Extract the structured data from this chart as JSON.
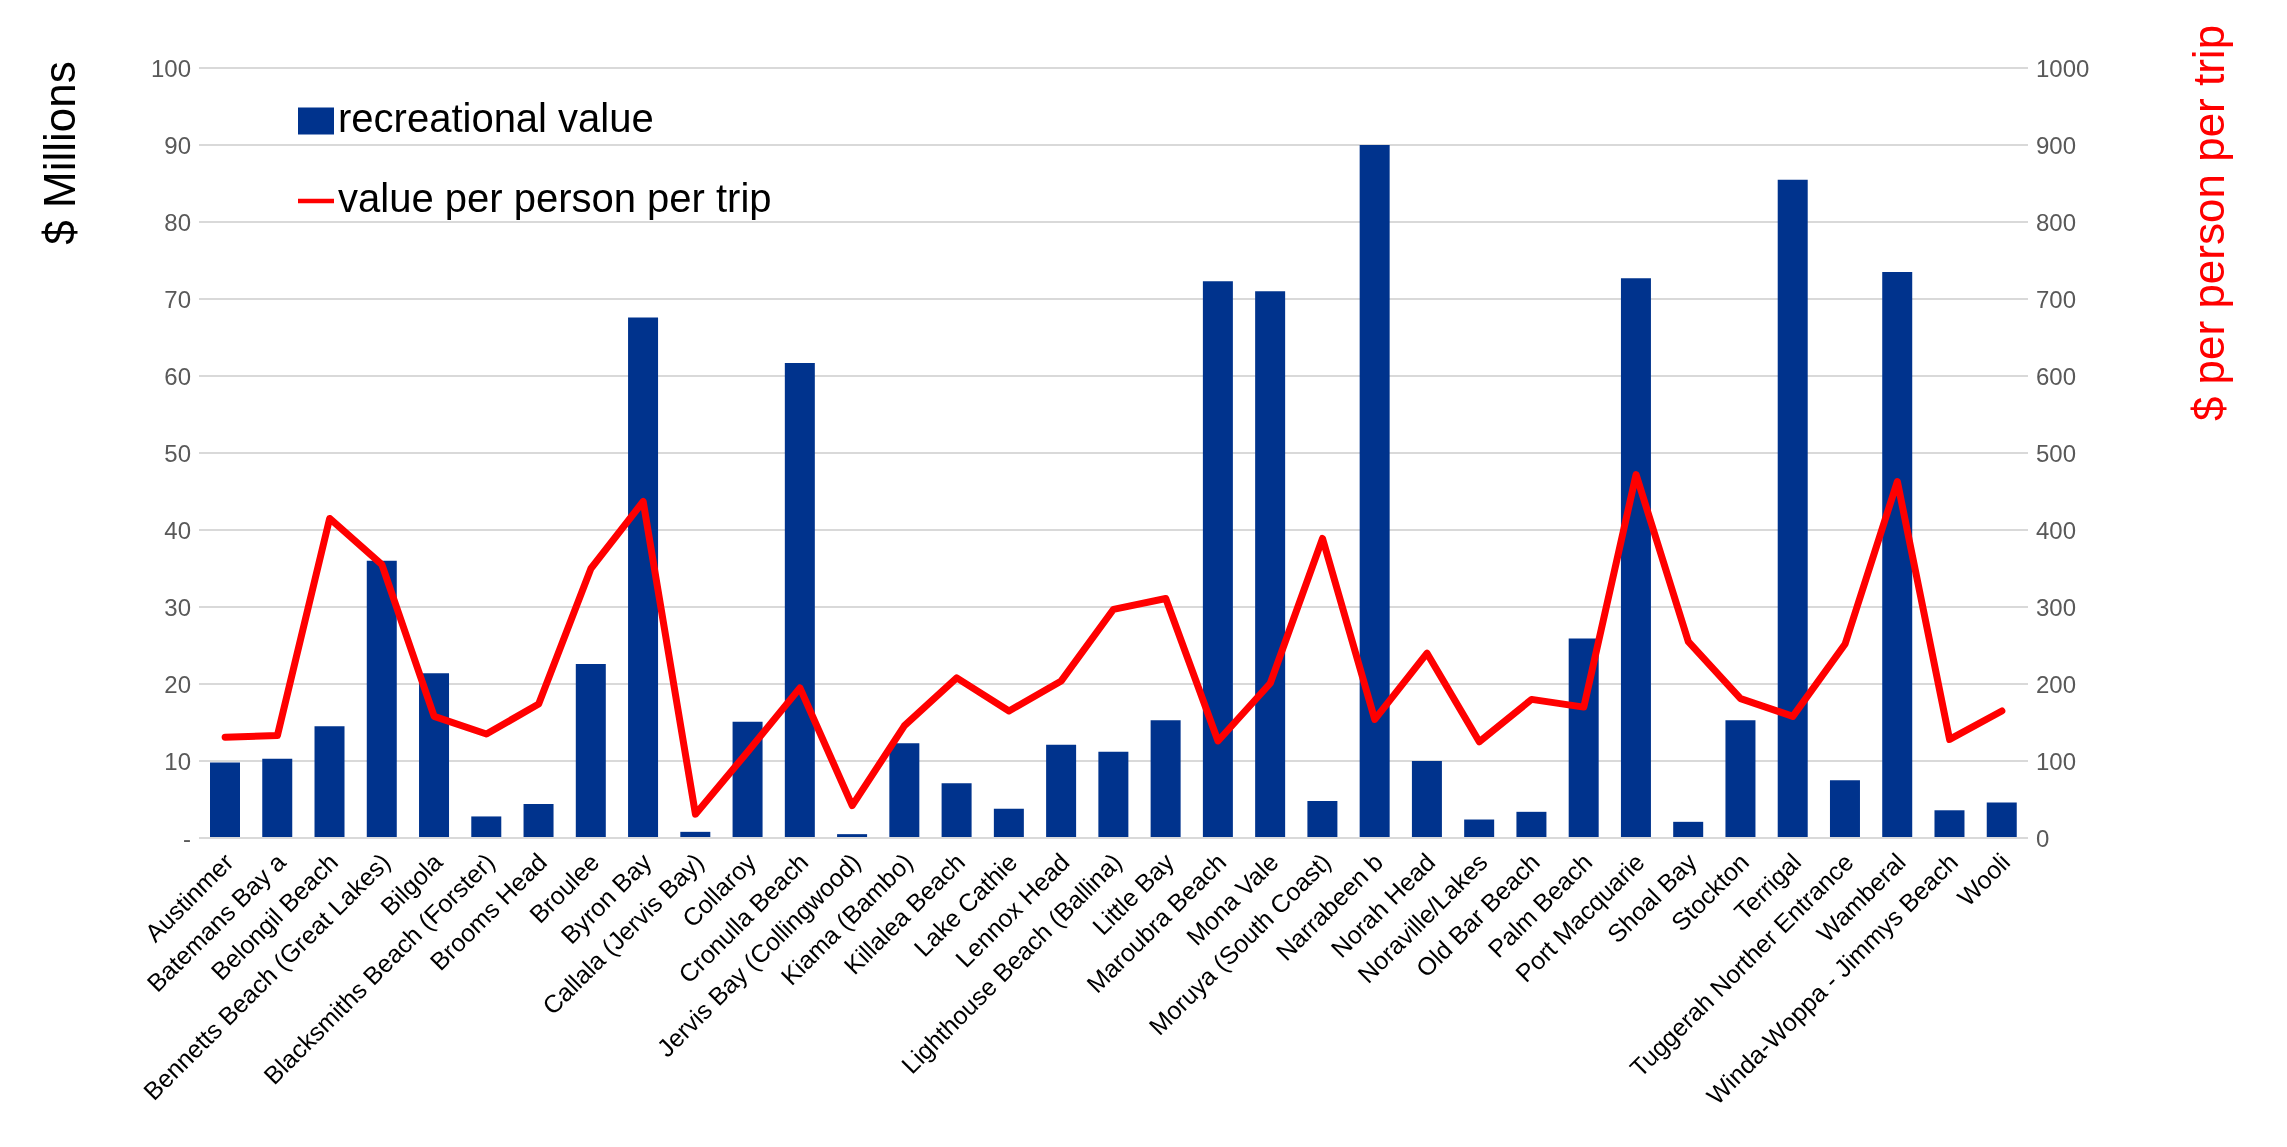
{
  "chart_data": {
    "type": "bar",
    "ylabel": "$ Millions",
    "y2label": "$ per person per trip",
    "categories": [
      "Austinmer",
      "Batemans Bay a",
      "Belongil Beach",
      "Bennetts Beach (Great Lakes)",
      "Bilgola",
      "Blacksmiths Beach (Forster)",
      "Brooms Head",
      "Broulee",
      "Byron Bay",
      "Callala (Jervis Bay)",
      "Collaroy",
      "Cronulla Beach",
      "Jervis Bay (Collingwood)",
      "Kiama (Bambo)",
      "Killalea Beach",
      "Lake Cathie",
      "Lennox Head",
      "Lighthouse Beach (Ballina)",
      "Little Bay",
      "Maroubra Beach",
      "Mona Vale",
      "Moruya (South Coast)",
      "Narrabeen b",
      "Norah Head",
      "Noraville/Lakes",
      "Old Bar Beach",
      "Palm Beach",
      "Port Macquarie",
      "Shoal Bay",
      "Stockton",
      "Terrigal",
      "Tuggerah Norther Entrance",
      "Wamberal",
      "Winda-Woppa - Jimmys Beach",
      "Wooli"
    ],
    "series": [
      {
        "name": "recreational value",
        "color": "#00338d",
        "values": [
          9.8,
          10.3,
          14.5,
          36,
          21.4,
          2.8,
          4.4,
          22.6,
          67.6,
          0.8,
          15.1,
          61.7,
          0.5,
          12.3,
          7.1,
          3.8,
          12.1,
          11.2,
          15.3,
          72.3,
          71,
          4.8,
          90,
          10,
          2.4,
          3.4,
          25.9,
          72.7,
          2.1,
          15.3,
          85.5,
          7.5,
          73.5,
          3.6,
          4.6
        ]
      },
      {
        "name": "value per person per trip",
        "type": "line",
        "axis": "y2",
        "color": "#ff0000",
        "values": [
          131,
          133,
          415,
          355,
          158,
          135,
          174,
          350,
          437,
          31,
          112,
          195,
          42,
          146,
          208,
          165,
          204,
          297,
          311,
          126,
          201,
          389,
          154,
          240,
          125,
          180,
          170,
          472,
          255,
          181,
          158,
          252,
          463,
          128,
          165
        ]
      }
    ],
    "ylim": [
      0,
      100
    ],
    "yticks": [
      {
        "value": 0,
        "label": "-"
      },
      10,
      20,
      30,
      40,
      50,
      60,
      70,
      80,
      90,
      100
    ],
    "y2lim": [
      0,
      1000
    ],
    "y2ticks": [
      0,
      100,
      200,
      300,
      400,
      500,
      600,
      700,
      800,
      900,
      1000
    ],
    "grid": "y",
    "legend": "top left",
    "marker": "none",
    "line_style": "solid"
  }
}
